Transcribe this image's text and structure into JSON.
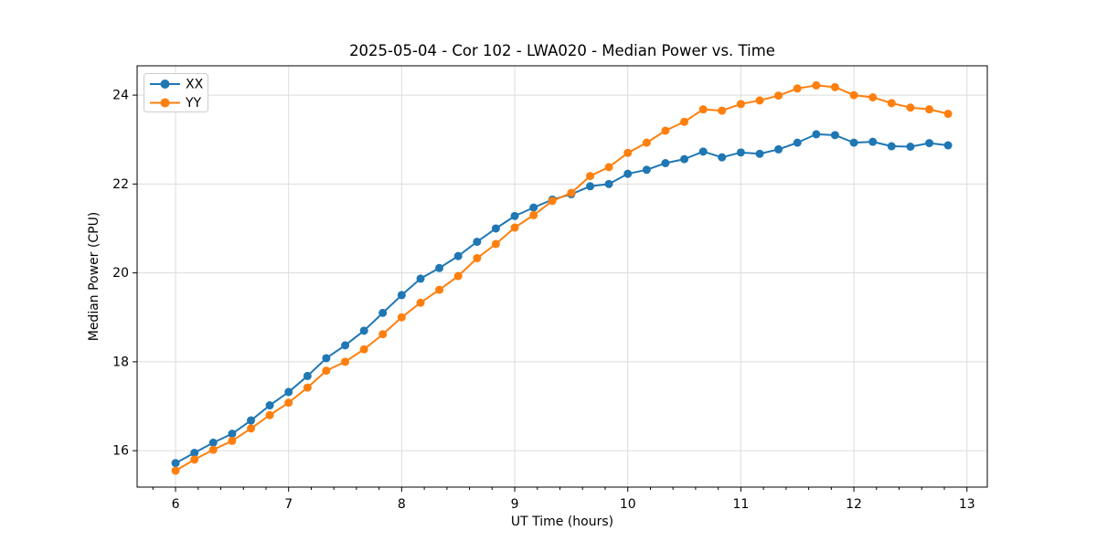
{
  "chart_data": {
    "type": "line",
    "title": "2025-05-04 - Cor 102 - LWA020 - Median Power vs. Time",
    "xlabel": "UT Time (hours)",
    "ylabel": "Median Power (CPU)",
    "xlim": [
      5.66,
      13.18
    ],
    "ylim": [
      15.18,
      24.66
    ],
    "x_major_ticks": [
      6,
      7,
      8,
      9,
      10,
      11,
      12,
      13
    ],
    "x_minor_tick_step": 0.2,
    "y_major_ticks": [
      16,
      18,
      20,
      22,
      24
    ],
    "grid": true,
    "legend_position": "upper left",
    "x": [
      6.0,
      6.167,
      6.333,
      6.5,
      6.667,
      6.833,
      7.0,
      7.167,
      7.333,
      7.5,
      7.667,
      7.833,
      8.0,
      8.167,
      8.333,
      8.5,
      8.667,
      8.833,
      9.0,
      9.167,
      9.333,
      9.5,
      9.667,
      9.833,
      10.0,
      10.167,
      10.333,
      10.5,
      10.667,
      10.833,
      11.0,
      11.167,
      11.333,
      11.5,
      11.667,
      11.833,
      12.0,
      12.167,
      12.333,
      12.5,
      12.667,
      12.833
    ],
    "series": [
      {
        "name": "XX",
        "color": "#1f77b4",
        "marker": "circle",
        "values": [
          15.72,
          15.95,
          16.18,
          16.38,
          16.68,
          17.02,
          17.32,
          17.68,
          18.08,
          18.37,
          18.7,
          19.1,
          19.5,
          19.87,
          20.11,
          20.38,
          20.7,
          21.0,
          21.28,
          21.47,
          21.65,
          21.77,
          21.95,
          22.0,
          22.23,
          22.32,
          22.47,
          22.56,
          22.73,
          22.6,
          22.71,
          22.68,
          22.78,
          22.93,
          23.12,
          23.1,
          22.93,
          22.95,
          22.85,
          22.84,
          22.92,
          22.87
        ]
      },
      {
        "name": "YY",
        "color": "#ff7f0e",
        "marker": "circle",
        "values": [
          15.55,
          15.8,
          16.02,
          16.22,
          16.5,
          16.8,
          17.08,
          17.42,
          17.8,
          18.0,
          18.28,
          18.62,
          19.0,
          19.33,
          19.62,
          19.93,
          20.33,
          20.65,
          21.02,
          21.3,
          21.62,
          21.8,
          22.18,
          22.38,
          22.7,
          22.93,
          23.2,
          23.4,
          23.68,
          23.65,
          23.8,
          23.88,
          23.99,
          24.15,
          24.22,
          24.18,
          24.0,
          23.95,
          23.82,
          23.72,
          23.68,
          23.58
        ]
      }
    ],
    "colors": {
      "grid": "#dcdcdc",
      "spines": "#000000",
      "background": "#ffffff"
    }
  }
}
